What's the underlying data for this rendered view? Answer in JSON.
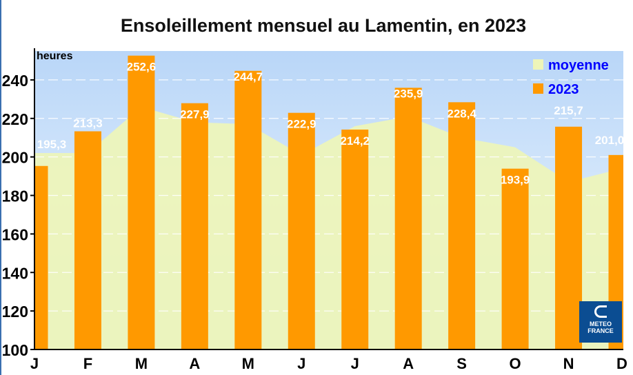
{
  "chart_data": {
    "type": "bar",
    "title": "Ensoleillement mensuel au Lamentin, en 2023",
    "ylabel": "heures",
    "xlabel": "",
    "categories": [
      "J",
      "F",
      "M",
      "A",
      "M",
      "J",
      "J",
      "A",
      "S",
      "O",
      "N",
      "D"
    ],
    "ylim": [
      100,
      255
    ],
    "yticks": [
      100,
      120,
      140,
      160,
      180,
      200,
      220,
      240
    ],
    "grid": true,
    "legend_position": "top-right",
    "series": [
      {
        "name": "moyenne",
        "type": "area",
        "color": "#eef5b8",
        "values": [
          202,
          202,
          226,
          218,
          217,
          201,
          216,
          221,
          210,
          205,
          187,
          194
        ]
      },
      {
        "name": "2023",
        "type": "bar",
        "color": "#ff9900",
        "values": [
          195.3,
          213.3,
          252.6,
          227.9,
          244.7,
          222.9,
          214.2,
          235.9,
          228.4,
          193.9,
          215.7,
          201.0
        ],
        "labels": [
          "195,3",
          "213,3",
          "252,6",
          "227,9",
          "244,7",
          "222,9",
          "214,2",
          "235,9",
          "228,4",
          "193,9",
          "215,7",
          "201,0"
        ]
      }
    ]
  },
  "logo": {
    "line1": "METEO",
    "line2": "FRANCE"
  },
  "colors": {
    "sky": "#bcd8f7",
    "legend_text": "#0000ff",
    "label_text": "#ffffff"
  }
}
